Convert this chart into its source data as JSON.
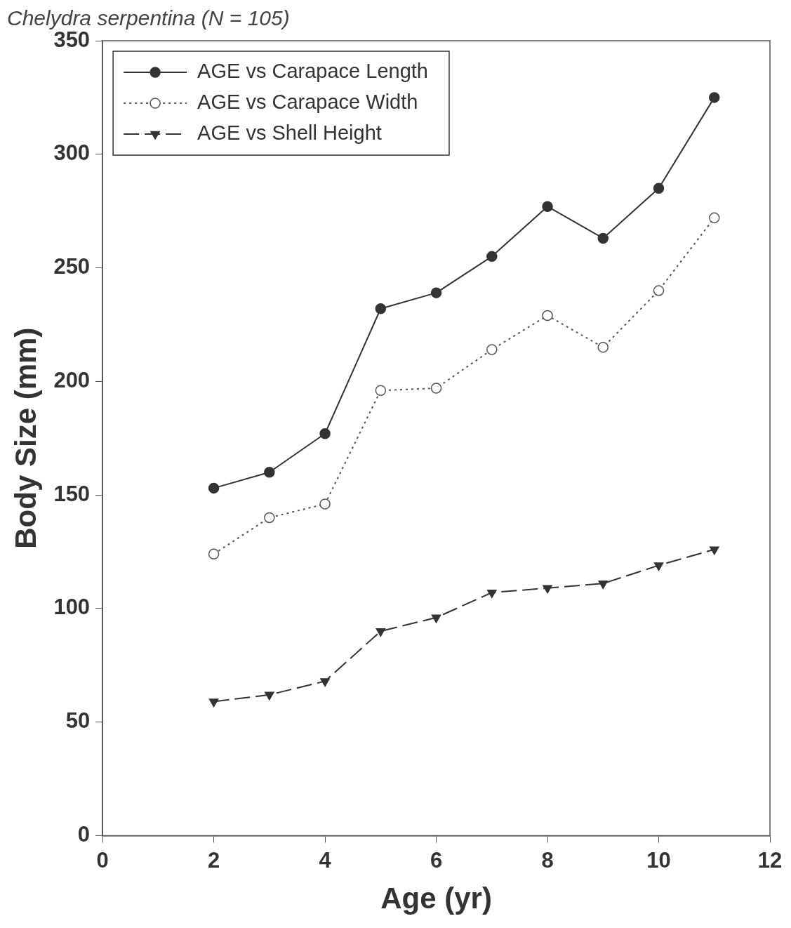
{
  "chart_data": {
    "type": "line",
    "title": "Chelydra serpentina (N = 105)",
    "xlabel": "Age (yr)",
    "ylabel": "Body Size (mm)",
    "x": [
      2,
      3,
      4,
      5,
      6,
      7,
      8,
      9,
      10,
      11
    ],
    "series": [
      {
        "name": "AGE vs Carapace Length",
        "color": "#333333",
        "marker": "circle",
        "line_style": "solid",
        "values": [
          153,
          160,
          177,
          232,
          239,
          255,
          277,
          263,
          285,
          325
        ]
      },
      {
        "name": "AGE vs Carapace Width",
        "color": "#555555",
        "marker": "circle",
        "line_style": "dotted",
        "values": [
          124,
          140,
          146,
          196,
          197,
          214,
          229,
          215,
          240,
          272
        ]
      },
      {
        "name": "AGE vs Shell Height",
        "color": "#333333",
        "marker": "triangle",
        "line_style": "dashed",
        "values": [
          59,
          62,
          68,
          90,
          96,
          107,
          109,
          111,
          119,
          126
        ]
      }
    ],
    "xlim": [
      0,
      12
    ],
    "xticks": [
      0,
      2,
      4,
      6,
      8,
      10,
      12
    ],
    "ylim": [
      0,
      350
    ],
    "yticks": [
      0,
      50,
      100,
      150,
      200,
      250,
      300,
      350
    ],
    "grid": false,
    "legend": "top left"
  }
}
